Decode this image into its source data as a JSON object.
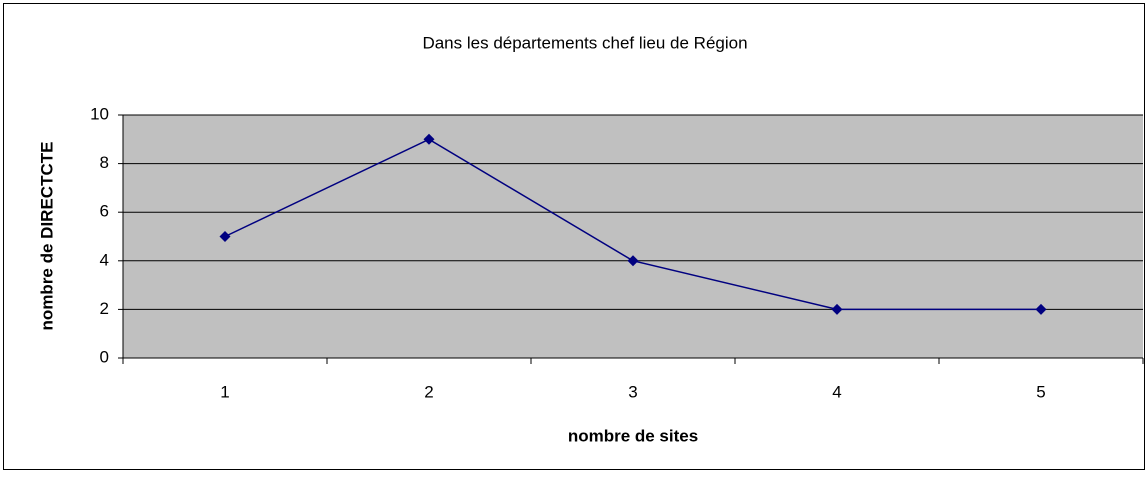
{
  "chart_data": {
    "type": "line",
    "title": "Dans les départements chef lieu de Région",
    "x_label": "nombre de sites",
    "y_label": "nombre de DIRECTCTE",
    "categories": [
      "1",
      "2",
      "3",
      "4",
      "5"
    ],
    "series": [
      {
        "name": "nombre de DIRECTCTE",
        "color": "#000080",
        "values": [
          5,
          9,
          4,
          2,
          2
        ]
      }
    ],
    "ylim": [
      0,
      10
    ],
    "yticks": [
      0,
      2,
      4,
      6,
      8,
      10
    ],
    "grid": true,
    "plot_background": "#c0c0c0"
  }
}
